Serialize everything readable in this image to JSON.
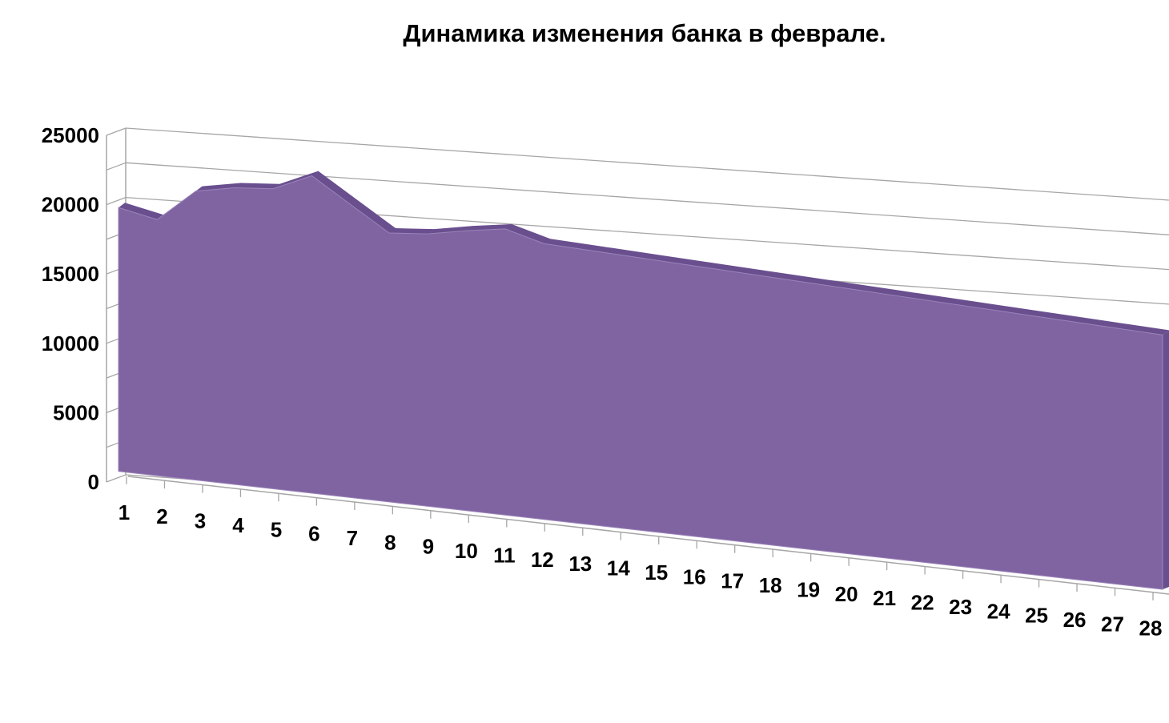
{
  "chart_data": {
    "type": "area",
    "title": "Динамика изменения банка в феврале.",
    "xlabel": "",
    "ylabel": "",
    "categories": [
      "1",
      "2",
      "3",
      "4",
      "5",
      "6",
      "7",
      "8",
      "9",
      "10",
      "11",
      "12",
      "13",
      "14",
      "15",
      "16",
      "17",
      "18",
      "19",
      "20",
      "21",
      "22",
      "23",
      "24",
      "25",
      "26",
      "27",
      "28"
    ],
    "series": [
      {
        "values": [
          18800,
          18300,
          20700,
          21300,
          21600,
          22900,
          21200,
          19500,
          19800,
          20400,
          20900,
          20200,
          20150,
          20100,
          20050,
          20000,
          19950,
          19900,
          19850,
          19800,
          19750,
          19700,
          19650,
          19600,
          19550,
          19500,
          19450,
          19400
        ]
      }
    ],
    "y_ticks": [
      "0",
      "5000",
      "10000",
      "15000",
      "20000",
      "25000"
    ],
    "ylim": [
      0,
      25000
    ],
    "grid": true,
    "legend": "none",
    "style": "3d-area",
    "colors": {
      "fill": "#8064A2",
      "top_edge": "#6A4F8F",
      "grid": "#A6A6A6",
      "axis": "#A6A6A6"
    }
  }
}
